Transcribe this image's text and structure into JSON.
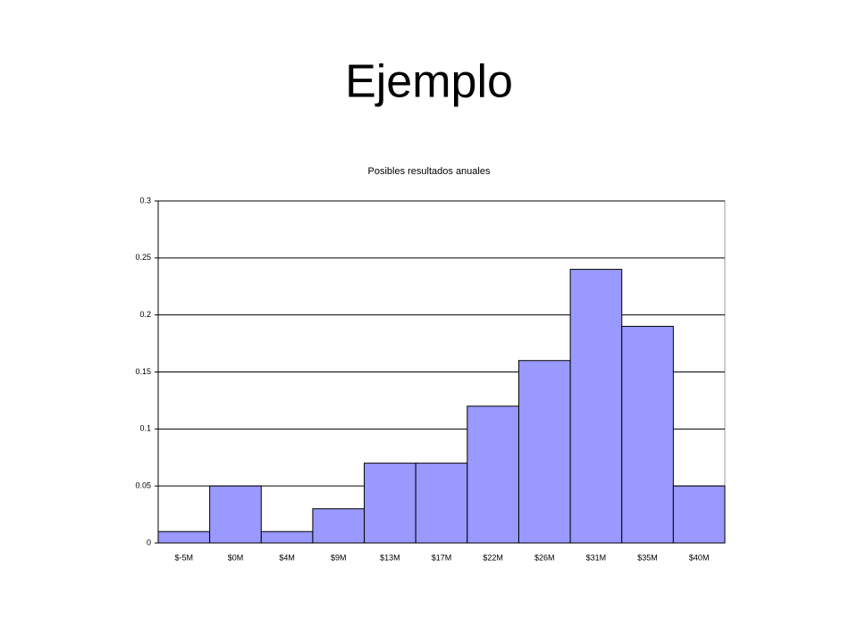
{
  "slide_title": "Ejemplo",
  "chart_data": {
    "type": "bar",
    "title": "Posibles resultados anuales",
    "categories": [
      "$-5M",
      "$0M",
      "$4M",
      "$9M",
      "$13M",
      "$17M",
      "$22M",
      "$26M",
      "$31M",
      "$35M",
      "$40M"
    ],
    "values": [
      0.01,
      0.05,
      0.01,
      0.03,
      0.07,
      0.07,
      0.12,
      0.16,
      0.24,
      0.19,
      0.05
    ],
    "color": "#9999ff",
    "ylim": [
      0,
      0.3
    ],
    "yticks": [
      0,
      0.05,
      0.1,
      0.15,
      0.2,
      0.25,
      0.3
    ],
    "grid": true
  }
}
